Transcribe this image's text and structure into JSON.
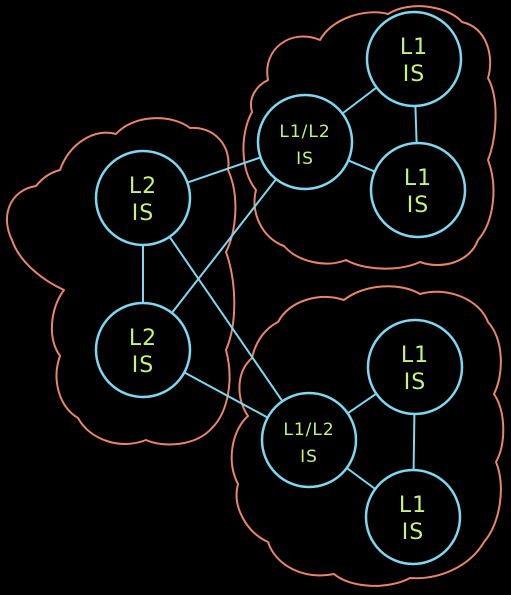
{
  "colors": {
    "background": "#000000",
    "area_outline": "#e8856a",
    "node_outline": "#7fd8f0",
    "link": "#7fd8f0",
    "label": "#c8f27a"
  },
  "areas": [
    {
      "id": "area-top-right"
    },
    {
      "id": "area-left"
    },
    {
      "id": "area-bottom-right"
    }
  ],
  "nodes": [
    {
      "id": "n1",
      "line1": "L1",
      "line2": "IS"
    },
    {
      "id": "n2",
      "line1": "L1/L2",
      "line2": "IS"
    },
    {
      "id": "n3",
      "line1": "L1",
      "line2": "IS"
    },
    {
      "id": "n4",
      "line1": "L2",
      "line2": "IS"
    },
    {
      "id": "n5",
      "line1": "L2",
      "line2": "IS"
    },
    {
      "id": "n6",
      "line1": "L1",
      "line2": "IS"
    },
    {
      "id": "n7",
      "line1": "L1/L2",
      "line2": "IS"
    },
    {
      "id": "n8",
      "line1": "L1",
      "line2": "IS"
    }
  ],
  "links": [
    [
      "n1",
      "n2"
    ],
    [
      "n1",
      "n3"
    ],
    [
      "n2",
      "n3"
    ],
    [
      "n4",
      "n5"
    ],
    [
      "n4",
      "n2"
    ],
    [
      "n5",
      "n2"
    ],
    [
      "n4",
      "n7"
    ],
    [
      "n5",
      "n7"
    ],
    [
      "n6",
      "n7"
    ],
    [
      "n6",
      "n8"
    ],
    [
      "n7",
      "n8"
    ]
  ]
}
